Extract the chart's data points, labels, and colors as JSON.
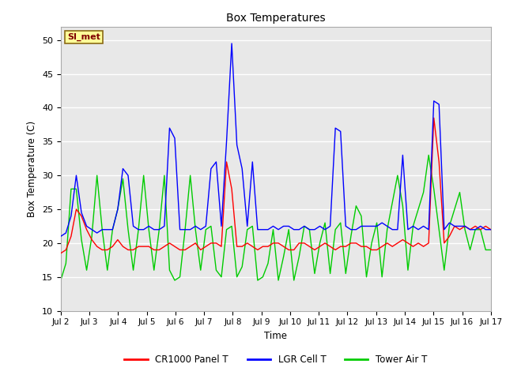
{
  "title": "Box Temperatures",
  "xlabel": "Time",
  "ylabel": "Box Temperature (C)",
  "ylim": [
    10,
    52
  ],
  "yticks": [
    10,
    15,
    20,
    25,
    30,
    35,
    40,
    45,
    50
  ],
  "bg_color": "#e8e8e8",
  "fig_color": "#ffffff",
  "annotation_text": "SI_met",
  "annotation_bg": "#ffff99",
  "annotation_border": "#8B6914",
  "annotation_text_color": "#800000",
  "legend_labels": [
    "CR1000 Panel T",
    "LGR Cell T",
    "Tower Air T"
  ],
  "x_tick_labels": [
    "Jul 2",
    "Jul 3",
    "Jul 4",
    "Jul 5",
    "Jul 6",
    "Jul 7",
    "Jul 8",
    "Jul 9",
    "Jul 10",
    "Jul 11",
    "Jul 12",
    "Jul 13",
    "Jul 14",
    "Jul 15",
    "Jul 16",
    "Jul 17"
  ],
  "cr1000": [
    18.5,
    19.0,
    21.0,
    25.0,
    24.0,
    22.0,
    20.5,
    19.5,
    19.0,
    19.0,
    19.5,
    20.5,
    19.5,
    19.0,
    19.0,
    19.5,
    19.5,
    19.5,
    19.0,
    19.0,
    19.5,
    20.0,
    19.5,
    19.0,
    19.0,
    19.5,
    20.0,
    19.0,
    19.5,
    20.0,
    20.0,
    19.5,
    32.0,
    28.0,
    19.5,
    19.5,
    20.0,
    19.5,
    19.0,
    19.5,
    19.5,
    20.0,
    20.0,
    19.5,
    19.0,
    19.0,
    20.0,
    20.0,
    19.5,
    19.0,
    19.5,
    20.0,
    19.5,
    19.0,
    19.5,
    19.5,
    20.0,
    20.0,
    19.5,
    19.5,
    19.0,
    19.0,
    19.5,
    20.0,
    19.5,
    20.0,
    20.5,
    20.0,
    19.5,
    20.0,
    19.5,
    20.0,
    38.5,
    32.0,
    20.0,
    21.0,
    22.5,
    22.0,
    22.5,
    22.0,
    22.5,
    22.0,
    22.5,
    22.0
  ],
  "lgr": [
    21.0,
    21.5,
    24.0,
    30.0,
    24.5,
    22.5,
    22.0,
    21.5,
    22.0,
    22.0,
    22.0,
    25.0,
    31.0,
    30.0,
    22.5,
    22.0,
    22.0,
    22.5,
    22.0,
    22.0,
    22.5,
    37.0,
    35.5,
    22.0,
    22.0,
    22.0,
    22.5,
    22.0,
    22.5,
    31.0,
    32.0,
    22.5,
    35.0,
    49.5,
    34.5,
    31.0,
    22.5,
    32.0,
    22.0,
    22.0,
    22.0,
    22.5,
    22.0,
    22.5,
    22.5,
    22.0,
    22.0,
    22.5,
    22.0,
    22.0,
    22.5,
    22.0,
    22.5,
    37.0,
    36.5,
    22.5,
    22.0,
    22.0,
    22.5,
    22.5,
    22.5,
    22.5,
    23.0,
    22.5,
    22.0,
    22.0,
    33.0,
    22.0,
    22.5,
    22.0,
    22.5,
    22.0,
    41.0,
    40.5,
    22.0,
    23.0,
    22.5,
    22.5,
    22.5,
    22.0,
    22.0,
    22.5,
    22.0,
    22.0
  ],
  "tower": [
    14.5,
    17.0,
    28.0,
    28.0,
    20.5,
    16.0,
    21.0,
    30.0,
    22.0,
    16.0,
    22.0,
    25.0,
    29.5,
    22.0,
    16.0,
    22.0,
    30.0,
    22.0,
    16.0,
    22.0,
    30.0,
    16.0,
    14.5,
    15.0,
    22.0,
    30.0,
    22.0,
    16.0,
    22.0,
    22.5,
    16.0,
    15.0,
    22.0,
    22.5,
    15.0,
    16.5,
    22.0,
    22.5,
    14.5,
    15.0,
    17.0,
    22.0,
    14.5,
    18.0,
    22.0,
    14.5,
    18.0,
    22.5,
    22.0,
    15.5,
    20.0,
    23.0,
    15.5,
    22.0,
    23.0,
    15.5,
    21.0,
    25.5,
    24.0,
    15.0,
    20.0,
    23.0,
    15.0,
    22.0,
    26.0,
    30.0,
    25.5,
    16.0,
    22.5,
    25.0,
    27.5,
    33.0,
    28.0,
    22.0,
    16.0,
    22.5,
    25.0,
    27.5,
    22.0,
    19.0,
    22.0,
    22.0,
    19.0,
    19.0
  ]
}
